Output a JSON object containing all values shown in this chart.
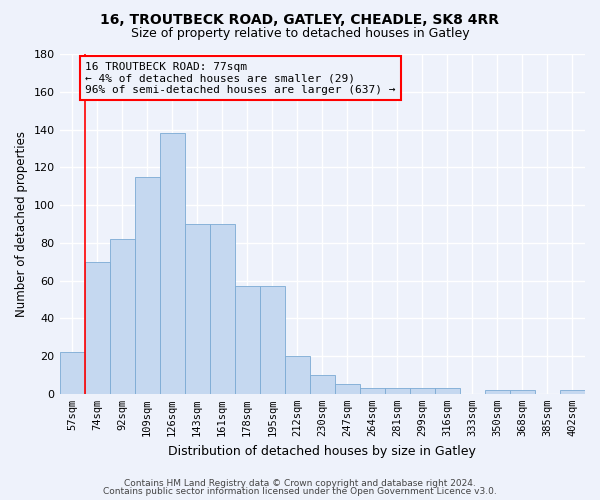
{
  "title1": "16, TROUTBECK ROAD, GATLEY, CHEADLE, SK8 4RR",
  "title2": "Size of property relative to detached houses in Gatley",
  "xlabel": "Distribution of detached houses by size in Gatley",
  "ylabel": "Number of detached properties",
  "bar_color": "#c5d8f0",
  "bar_edge_color": "#7baad4",
  "categories": [
    "57sqm",
    "74sqm",
    "92sqm",
    "109sqm",
    "126sqm",
    "143sqm",
    "161sqm",
    "178sqm",
    "195sqm",
    "212sqm",
    "230sqm",
    "247sqm",
    "264sqm",
    "281sqm",
    "299sqm",
    "316sqm",
    "333sqm",
    "350sqm",
    "368sqm",
    "385sqm",
    "402sqm"
  ],
  "values": [
    22,
    70,
    82,
    115,
    138,
    90,
    90,
    57,
    57,
    20,
    10,
    5,
    3,
    3,
    3,
    3,
    0,
    2,
    2,
    0,
    2
  ],
  "ylim": [
    0,
    180
  ],
  "yticks": [
    0,
    20,
    40,
    60,
    80,
    100,
    120,
    140,
    160,
    180
  ],
  "annotation_line1": "16 TROUTBECK ROAD: 77sqm",
  "annotation_line2": "← 4% of detached houses are smaller (29)",
  "annotation_line3": "96% of semi-detached houses are larger (637) →",
  "vline_x_index": 0.5,
  "footer1": "Contains HM Land Registry data © Crown copyright and database right 2024.",
  "footer2": "Contains public sector information licensed under the Open Government Licence v3.0.",
  "background_color": "#eef2fb",
  "grid_color": "#ffffff",
  "title_fontsize": 10,
  "subtitle_fontsize": 9,
  "annotation_fontsize": 8
}
